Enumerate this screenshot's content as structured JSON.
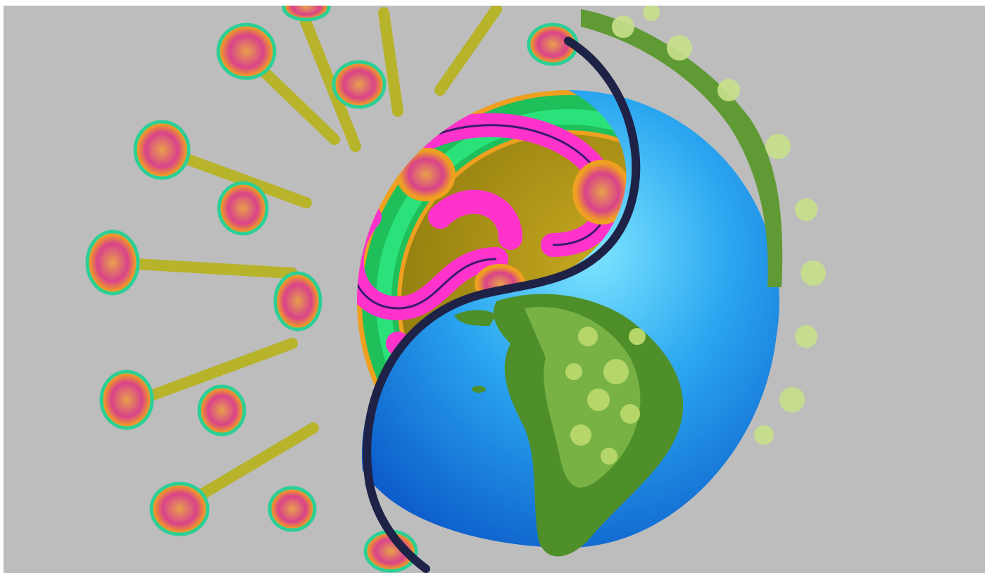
{
  "image": {
    "colors": {
      "background": "#bdbdbd",
      "frame": "#ffffff",
      "virus_outer_green": "#1fbf5a",
      "virus_inner_olive": "#b89a12",
      "virus_rna_magenta": "#ff33cc",
      "virus_rna_outline": "#3a1a6b",
      "spike_head_pink": "#e0508a",
      "spike_head_rim": "#38d7a0",
      "spike_stalk": "#b7b32a",
      "earth_ocean": "#1f8fe8",
      "earth_ocean_light": "#5ad1ff",
      "earth_land_green": "#4f8f2a",
      "earth_foliage_light": "#b7d66a",
      "s_curve_divider": "#1e2247"
    },
    "subject": {
      "left_half": "coronavirus-particle",
      "right_half": "earth-globe-with-foliage",
      "divider": "yin-yang-s-curve"
    }
  }
}
